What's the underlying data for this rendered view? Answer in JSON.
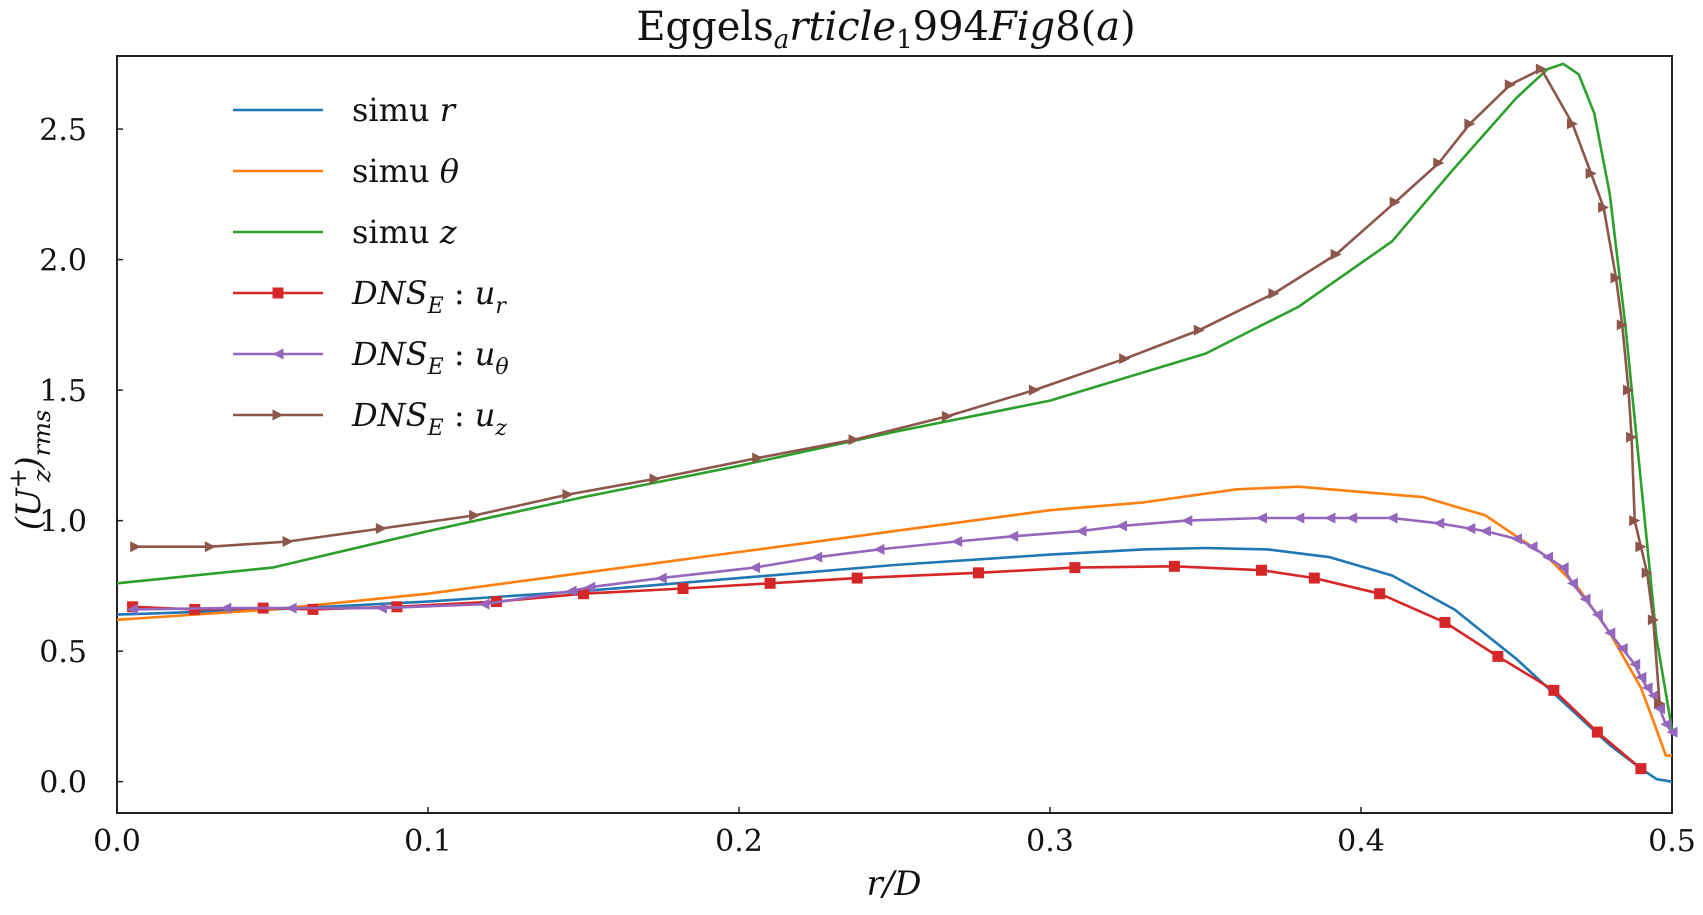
{
  "chart_data": {
    "type": "line",
    "title": "Eggels_article_1994_Fig8(a)",
    "xlabel": "r/D",
    "ylabel": "(U_z^+)_rms",
    "xlim": [
      0.0,
      0.5
    ],
    "ylim": [
      -0.12,
      2.78
    ],
    "xticks": [
      0.0,
      0.1,
      0.2,
      0.3,
      0.4,
      0.5
    ],
    "yticks": [
      0.0,
      0.5,
      1.0,
      1.5,
      2.0,
      2.5
    ],
    "xtick_labels": [
      "0.0",
      "0.1",
      "0.2",
      "0.3",
      "0.4",
      "0.5"
    ],
    "ytick_labels": [
      "0.0",
      "0.5",
      "1.0",
      "1.5",
      "2.0",
      "2.5"
    ],
    "grid": false,
    "legend_position": "upper-left",
    "series": [
      {
        "name": "simu r",
        "legend_main": "simu",
        "legend_var": "r",
        "color": "#1f77b4",
        "marker": "none",
        "x": [
          0.0,
          0.05,
          0.1,
          0.15,
          0.2,
          0.25,
          0.3,
          0.33,
          0.35,
          0.37,
          0.39,
          0.41,
          0.43,
          0.45,
          0.46,
          0.47,
          0.48,
          0.49,
          0.495,
          0.5
        ],
        "y": [
          0.64,
          0.66,
          0.69,
          0.73,
          0.78,
          0.83,
          0.87,
          0.89,
          0.895,
          0.89,
          0.86,
          0.79,
          0.66,
          0.47,
          0.36,
          0.25,
          0.14,
          0.05,
          0.01,
          0.0
        ]
      },
      {
        "name": "simu θ",
        "legend_main": "simu",
        "legend_var": "θ",
        "color": "#ff7f0e",
        "marker": "none",
        "x": [
          0.0,
          0.05,
          0.1,
          0.15,
          0.2,
          0.25,
          0.3,
          0.33,
          0.36,
          0.38,
          0.4,
          0.42,
          0.44,
          0.46,
          0.47,
          0.48,
          0.49,
          0.495,
          0.498,
          0.5
        ],
        "y": [
          0.62,
          0.66,
          0.72,
          0.8,
          0.88,
          0.96,
          1.04,
          1.07,
          1.12,
          1.13,
          1.11,
          1.09,
          1.02,
          0.86,
          0.74,
          0.57,
          0.36,
          0.2,
          0.1,
          0.1
        ]
      },
      {
        "name": "simu z",
        "legend_main": "simu",
        "legend_var": "z",
        "color": "#2ca02c",
        "marker": "none",
        "x": [
          0.0,
          0.05,
          0.1,
          0.15,
          0.2,
          0.25,
          0.3,
          0.35,
          0.38,
          0.41,
          0.43,
          0.45,
          0.46,
          0.465,
          0.47,
          0.475,
          0.48,
          0.485,
          0.49,
          0.495,
          0.5
        ],
        "y": [
          0.76,
          0.82,
          0.96,
          1.09,
          1.21,
          1.34,
          1.46,
          1.64,
          1.82,
          2.07,
          2.35,
          2.62,
          2.73,
          2.75,
          2.71,
          2.56,
          2.25,
          1.75,
          1.15,
          0.55,
          0.2
        ]
      },
      {
        "name": "DNS_E : u_r",
        "legend_main": "DNS",
        "legend_sub": "E",
        "legend_var": "u",
        "legend_var_sub": "r",
        "color": "#d62728",
        "marker": "square",
        "x": [
          0.005,
          0.025,
          0.047,
          0.063,
          0.09,
          0.122,
          0.15,
          0.182,
          0.21,
          0.238,
          0.277,
          0.308,
          0.34,
          0.368,
          0.385,
          0.406,
          0.427,
          0.444,
          0.462,
          0.476,
          0.49
        ],
        "y": [
          0.67,
          0.66,
          0.665,
          0.66,
          0.67,
          0.69,
          0.72,
          0.74,
          0.76,
          0.78,
          0.8,
          0.82,
          0.825,
          0.81,
          0.78,
          0.72,
          0.61,
          0.48,
          0.35,
          0.19,
          0.05
        ]
      },
      {
        "name": "DNS_E : u_θ",
        "legend_main": "DNS",
        "legend_sub": "E",
        "legend_var": "u",
        "legend_var_sub": "θ",
        "color": "#9467bd",
        "marker": "triangle-left",
        "x": [
          0.005,
          0.035,
          0.056,
          0.085,
          0.118,
          0.146,
          0.152,
          0.175,
          0.205,
          0.225,
          0.245,
          0.27,
          0.288,
          0.31,
          0.323,
          0.344,
          0.368,
          0.38,
          0.39,
          0.397,
          0.41,
          0.425,
          0.435,
          0.44,
          0.45,
          0.455,
          0.46,
          0.465,
          0.468,
          0.472,
          0.476,
          0.48,
          0.484,
          0.488,
          0.49,
          0.492,
          0.494,
          0.496,
          0.498,
          0.5
        ],
        "y": [
          0.66,
          0.665,
          0.665,
          0.665,
          0.68,
          0.73,
          0.745,
          0.78,
          0.82,
          0.86,
          0.89,
          0.92,
          0.94,
          0.96,
          0.98,
          1.0,
          1.01,
          1.01,
          1.01,
          1.01,
          1.01,
          0.99,
          0.97,
          0.96,
          0.93,
          0.9,
          0.86,
          0.82,
          0.76,
          0.7,
          0.64,
          0.57,
          0.51,
          0.45,
          0.4,
          0.36,
          0.33,
          0.28,
          0.22,
          0.19
        ]
      },
      {
        "name": "DNS_E : u_z",
        "legend_main": "DNS",
        "legend_sub": "E",
        "legend_var": "u",
        "legend_var_sub": "z",
        "color": "#8c564b",
        "marker": "triangle-right",
        "x": [
          0.006,
          0.03,
          0.055,
          0.085,
          0.115,
          0.145,
          0.173,
          0.206,
          0.237,
          0.267,
          0.295,
          0.324,
          0.348,
          0.372,
          0.392,
          0.411,
          0.425,
          0.435,
          0.448,
          0.458,
          0.468,
          0.474,
          0.478,
          0.482,
          0.484,
          0.486,
          0.487,
          0.488,
          0.49,
          0.492,
          0.494,
          0.496
        ],
        "y": [
          0.9,
          0.9,
          0.92,
          0.97,
          1.02,
          1.1,
          1.16,
          1.24,
          1.31,
          1.4,
          1.5,
          1.62,
          1.73,
          1.87,
          2.02,
          2.22,
          2.37,
          2.52,
          2.67,
          2.73,
          2.52,
          2.33,
          2.2,
          1.93,
          1.75,
          1.5,
          1.32,
          1.0,
          0.9,
          0.8,
          0.62,
          0.3
        ]
      }
    ]
  }
}
